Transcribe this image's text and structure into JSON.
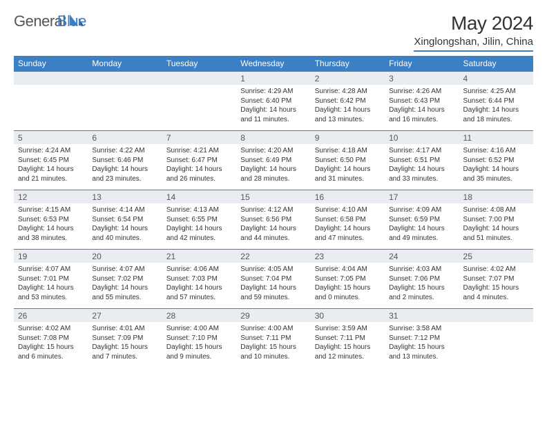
{
  "logo": {
    "text1": "General",
    "text2": "Blue"
  },
  "title": "May 2024",
  "location": "Xinglongshan, Jilin, China",
  "colors": {
    "accent": "#3b7fc4",
    "dayHeaderBg": "#e9edf1",
    "text": "#333333",
    "logoGray": "#555555",
    "background": "#ffffff"
  },
  "weekdays": [
    "Sunday",
    "Monday",
    "Tuesday",
    "Wednesday",
    "Thursday",
    "Friday",
    "Saturday"
  ],
  "labels": {
    "sunrise": "Sunrise:",
    "sunset": "Sunset:",
    "daylight": "Daylight:"
  },
  "days": [
    {
      "n": 1,
      "dow": 3,
      "sr": "4:29 AM",
      "ss": "6:40 PM",
      "dl": "14 hours and 11 minutes."
    },
    {
      "n": 2,
      "dow": 4,
      "sr": "4:28 AM",
      "ss": "6:42 PM",
      "dl": "14 hours and 13 minutes."
    },
    {
      "n": 3,
      "dow": 5,
      "sr": "4:26 AM",
      "ss": "6:43 PM",
      "dl": "14 hours and 16 minutes."
    },
    {
      "n": 4,
      "dow": 6,
      "sr": "4:25 AM",
      "ss": "6:44 PM",
      "dl": "14 hours and 18 minutes."
    },
    {
      "n": 5,
      "dow": 0,
      "sr": "4:24 AM",
      "ss": "6:45 PM",
      "dl": "14 hours and 21 minutes."
    },
    {
      "n": 6,
      "dow": 1,
      "sr": "4:22 AM",
      "ss": "6:46 PM",
      "dl": "14 hours and 23 minutes."
    },
    {
      "n": 7,
      "dow": 2,
      "sr": "4:21 AM",
      "ss": "6:47 PM",
      "dl": "14 hours and 26 minutes."
    },
    {
      "n": 8,
      "dow": 3,
      "sr": "4:20 AM",
      "ss": "6:49 PM",
      "dl": "14 hours and 28 minutes."
    },
    {
      "n": 9,
      "dow": 4,
      "sr": "4:18 AM",
      "ss": "6:50 PM",
      "dl": "14 hours and 31 minutes."
    },
    {
      "n": 10,
      "dow": 5,
      "sr": "4:17 AM",
      "ss": "6:51 PM",
      "dl": "14 hours and 33 minutes."
    },
    {
      "n": 11,
      "dow": 6,
      "sr": "4:16 AM",
      "ss": "6:52 PM",
      "dl": "14 hours and 35 minutes."
    },
    {
      "n": 12,
      "dow": 0,
      "sr": "4:15 AM",
      "ss": "6:53 PM",
      "dl": "14 hours and 38 minutes."
    },
    {
      "n": 13,
      "dow": 1,
      "sr": "4:14 AM",
      "ss": "6:54 PM",
      "dl": "14 hours and 40 minutes."
    },
    {
      "n": 14,
      "dow": 2,
      "sr": "4:13 AM",
      "ss": "6:55 PM",
      "dl": "14 hours and 42 minutes."
    },
    {
      "n": 15,
      "dow": 3,
      "sr": "4:12 AM",
      "ss": "6:56 PM",
      "dl": "14 hours and 44 minutes."
    },
    {
      "n": 16,
      "dow": 4,
      "sr": "4:10 AM",
      "ss": "6:58 PM",
      "dl": "14 hours and 47 minutes."
    },
    {
      "n": 17,
      "dow": 5,
      "sr": "4:09 AM",
      "ss": "6:59 PM",
      "dl": "14 hours and 49 minutes."
    },
    {
      "n": 18,
      "dow": 6,
      "sr": "4:08 AM",
      "ss": "7:00 PM",
      "dl": "14 hours and 51 minutes."
    },
    {
      "n": 19,
      "dow": 0,
      "sr": "4:07 AM",
      "ss": "7:01 PM",
      "dl": "14 hours and 53 minutes."
    },
    {
      "n": 20,
      "dow": 1,
      "sr": "4:07 AM",
      "ss": "7:02 PM",
      "dl": "14 hours and 55 minutes."
    },
    {
      "n": 21,
      "dow": 2,
      "sr": "4:06 AM",
      "ss": "7:03 PM",
      "dl": "14 hours and 57 minutes."
    },
    {
      "n": 22,
      "dow": 3,
      "sr": "4:05 AM",
      "ss": "7:04 PM",
      "dl": "14 hours and 59 minutes."
    },
    {
      "n": 23,
      "dow": 4,
      "sr": "4:04 AM",
      "ss": "7:05 PM",
      "dl": "15 hours and 0 minutes."
    },
    {
      "n": 24,
      "dow": 5,
      "sr": "4:03 AM",
      "ss": "7:06 PM",
      "dl": "15 hours and 2 minutes."
    },
    {
      "n": 25,
      "dow": 6,
      "sr": "4:02 AM",
      "ss": "7:07 PM",
      "dl": "15 hours and 4 minutes."
    },
    {
      "n": 26,
      "dow": 0,
      "sr": "4:02 AM",
      "ss": "7:08 PM",
      "dl": "15 hours and 6 minutes."
    },
    {
      "n": 27,
      "dow": 1,
      "sr": "4:01 AM",
      "ss": "7:09 PM",
      "dl": "15 hours and 7 minutes."
    },
    {
      "n": 28,
      "dow": 2,
      "sr": "4:00 AM",
      "ss": "7:10 PM",
      "dl": "15 hours and 9 minutes."
    },
    {
      "n": 29,
      "dow": 3,
      "sr": "4:00 AM",
      "ss": "7:11 PM",
      "dl": "15 hours and 10 minutes."
    },
    {
      "n": 30,
      "dow": 4,
      "sr": "3:59 AM",
      "ss": "7:11 PM",
      "dl": "15 hours and 12 minutes."
    },
    {
      "n": 31,
      "dow": 5,
      "sr": "3:58 AM",
      "ss": "7:12 PM",
      "dl": "15 hours and 13 minutes."
    }
  ]
}
